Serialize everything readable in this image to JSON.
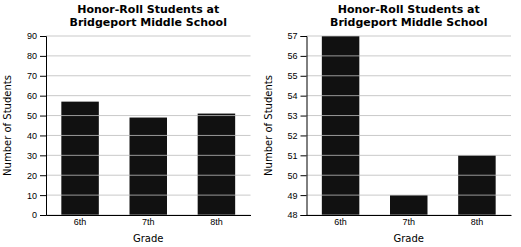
{
  "chart_data": [
    {
      "type": "bar",
      "title": "Honor-Roll Students at\nBridgeport Middle School",
      "categories": [
        "6th",
        "7th",
        "8th"
      ],
      "values": [
        57,
        49,
        51
      ],
      "color": "#111111",
      "xlabel": "Grade",
      "ylabel": "Number of Students",
      "ylim": [
        0,
        90
      ],
      "yticks": [
        0,
        10,
        20,
        30,
        40,
        50,
        60,
        70,
        80,
        90
      ],
      "grid": true
    },
    {
      "type": "bar",
      "title": "Honor-Roll Students at\nBridgeport Middle School",
      "categories": [
        "6th",
        "7th",
        "8th"
      ],
      "values": [
        57,
        49,
        51
      ],
      "color": "#111111",
      "xlabel": "Grade",
      "ylabel": "Number of Students",
      "ylim": [
        48,
        57
      ],
      "yticks": [
        48,
        49,
        50,
        51,
        52,
        53,
        54,
        55,
        56,
        57
      ],
      "grid": true
    }
  ]
}
